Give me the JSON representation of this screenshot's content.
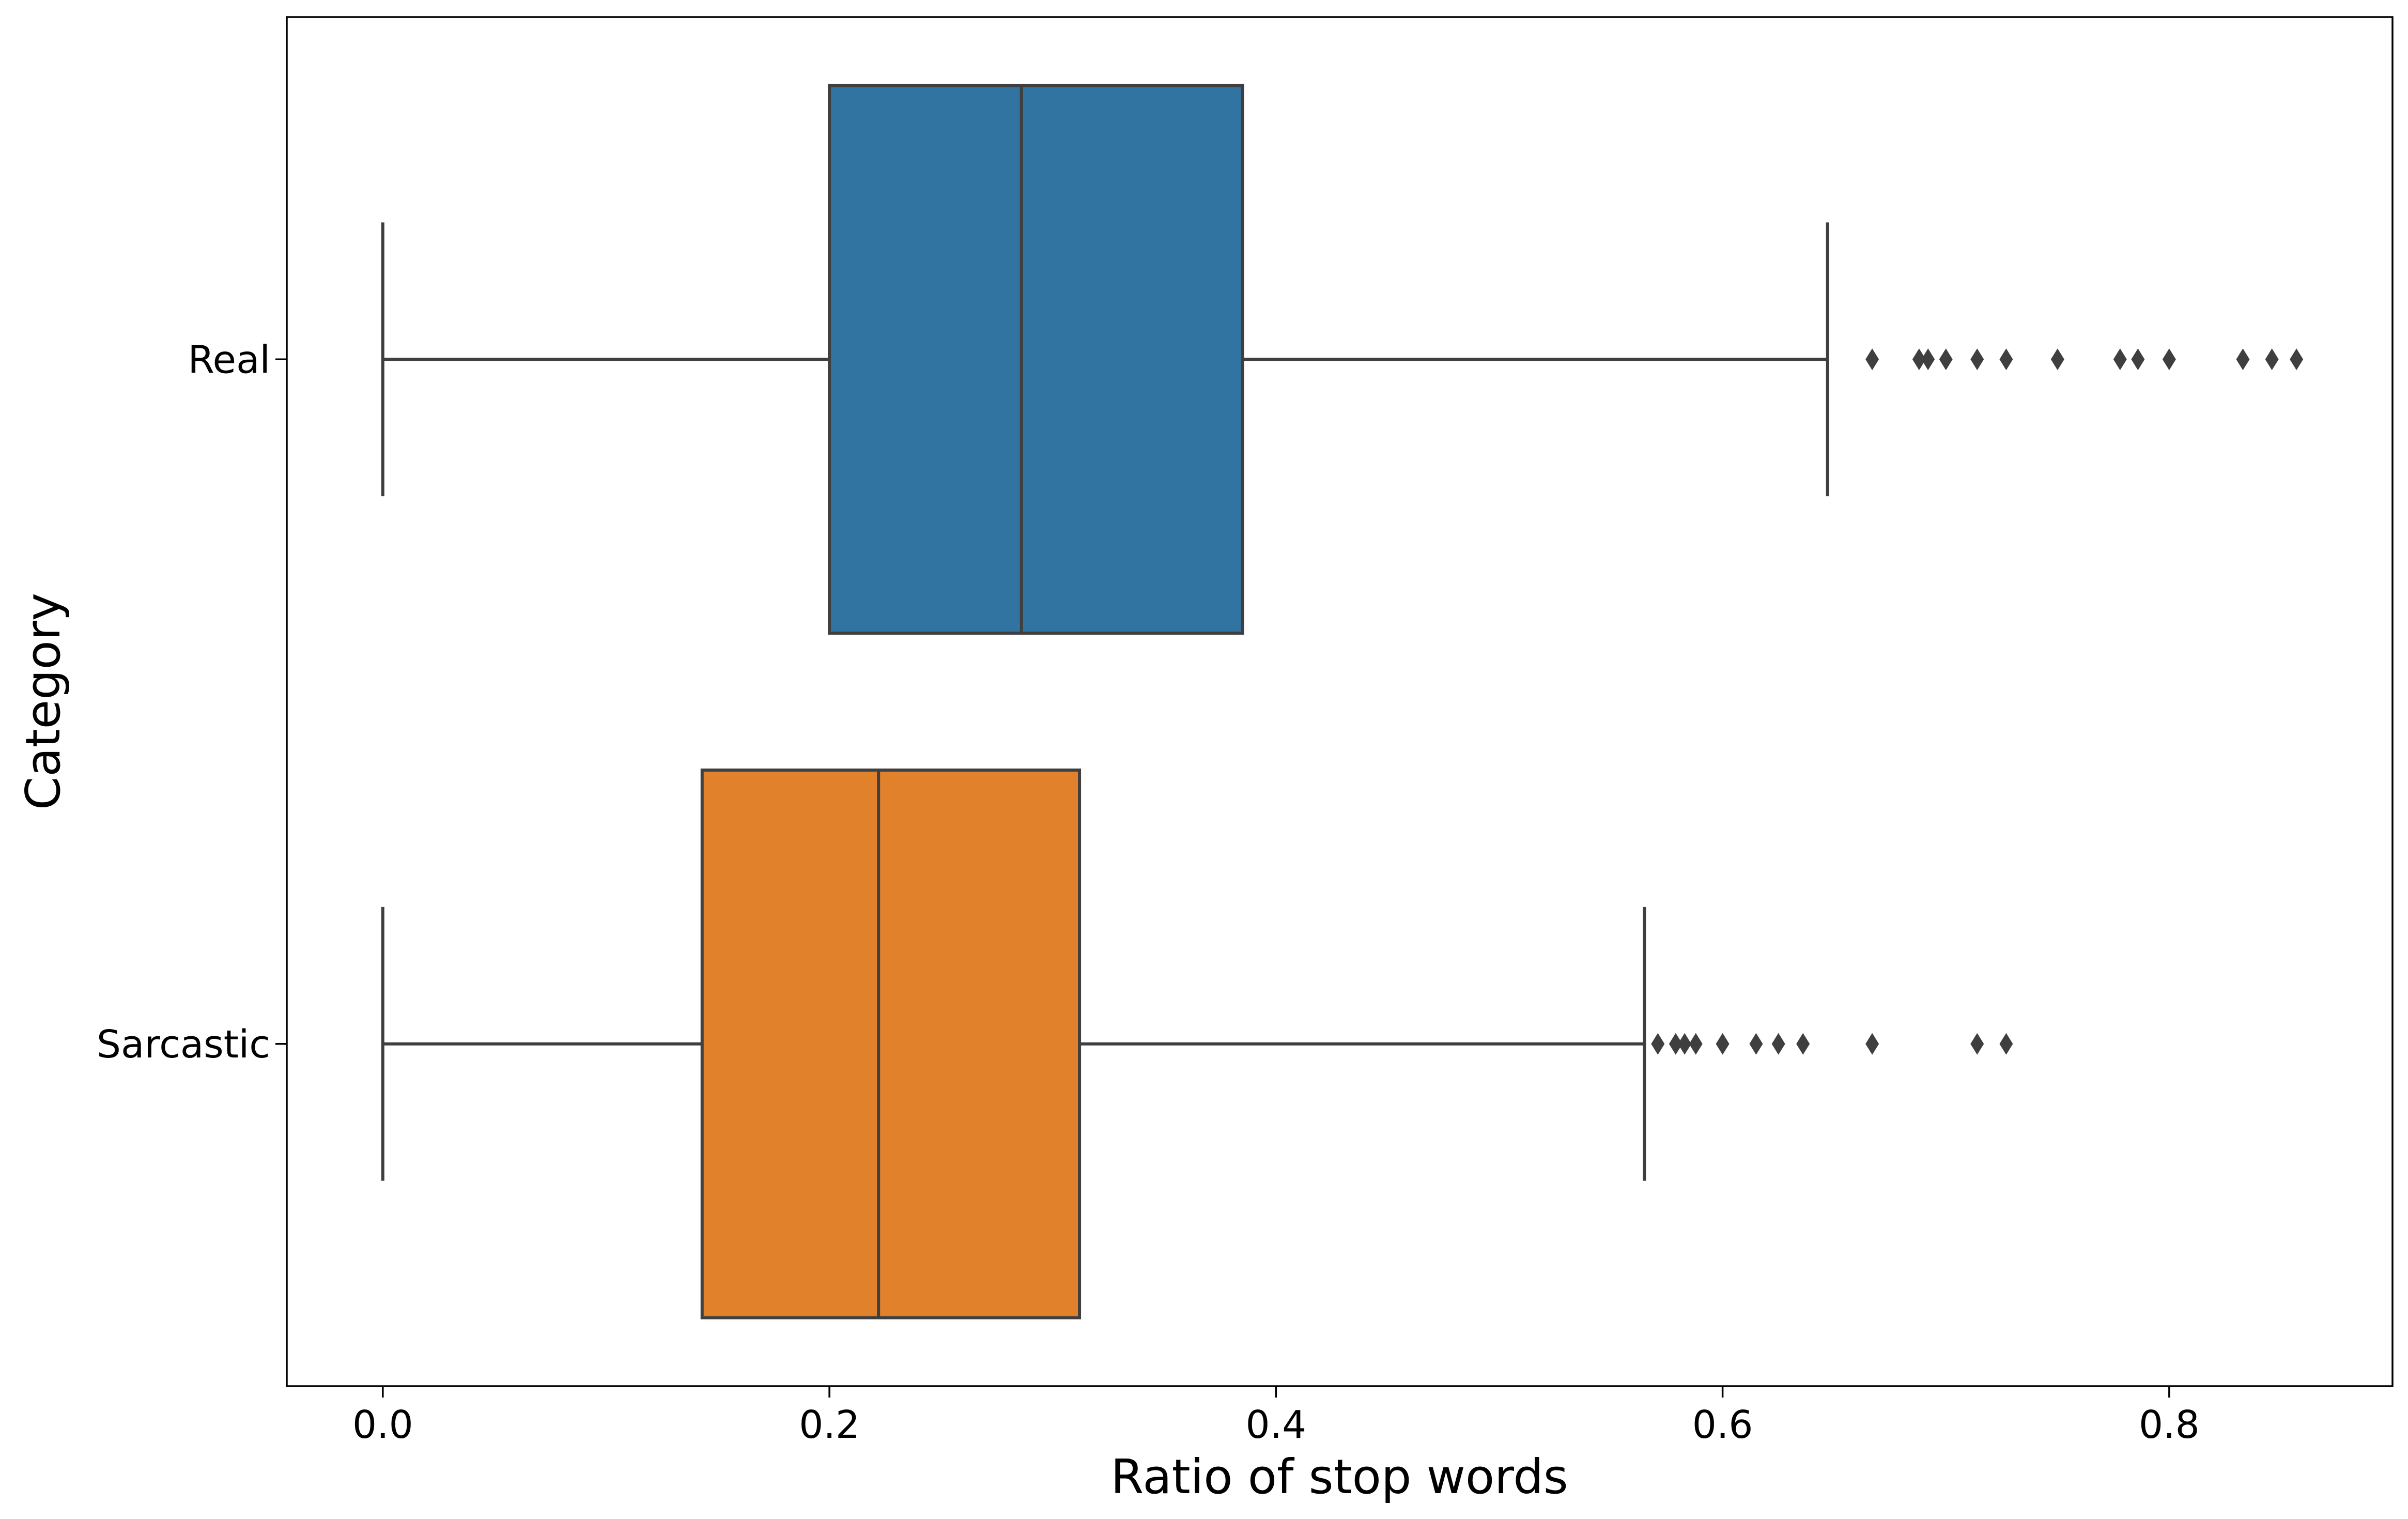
{
  "chart_data": {
    "type": "box",
    "orientation": "horizontal",
    "title": "",
    "xlabel": "Ratio of stop words",
    "ylabel": "Category",
    "xlim": [
      -0.043,
      0.9
    ],
    "xticks": [
      0.0,
      0.2,
      0.4,
      0.6,
      0.8
    ],
    "xtick_labels": [
      "0.0",
      "0.2",
      "0.4",
      "0.6",
      "0.8"
    ],
    "grid": false,
    "legend": "none",
    "categories": [
      "Real",
      "Sarcastic"
    ],
    "series": [
      {
        "category": "Real",
        "color": "#3274a1",
        "whisker_low": 0.0,
        "q1": 0.2,
        "median": 0.286,
        "q3": 0.385,
        "whisker_high": 0.647,
        "outliers": [
          0.667,
          0.688,
          0.692,
          0.7,
          0.714,
          0.727,
          0.75,
          0.778,
          0.786,
          0.8,
          0.833,
          0.846,
          0.857
        ]
      },
      {
        "category": "Sarcastic",
        "color": "#e1812c",
        "whisker_low": 0.0,
        "q1": 0.143,
        "median": 0.222,
        "q3": 0.312,
        "whisker_high": 0.565,
        "outliers": [
          0.571,
          0.579,
          0.583,
          0.588,
          0.6,
          0.615,
          0.625,
          0.636,
          0.667,
          0.714,
          0.727
        ]
      }
    ]
  }
}
